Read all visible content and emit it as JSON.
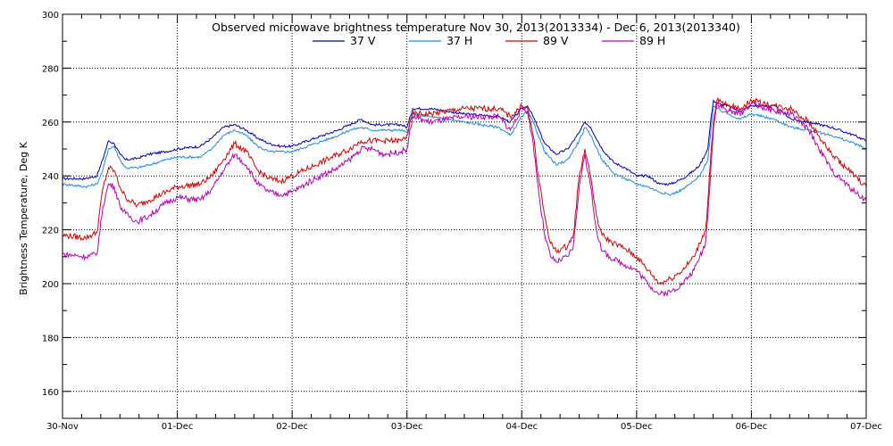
{
  "chart_data": {
    "type": "line",
    "title": "Observed microwave brightness temperature Nov 30, 2013(2013334) - Dec  6, 2013(2013340)",
    "xlabel": "",
    "ylabel": "Brightness Temperature, Deg K",
    "xlim": [
      0,
      7
    ],
    "ylim": [
      150,
      300
    ],
    "yticks": [
      160,
      180,
      200,
      220,
      240,
      260,
      280,
      300
    ],
    "xticks": [
      {
        "v": 0,
        "label": "30-Nov"
      },
      {
        "v": 1,
        "label": "01-Dec"
      },
      {
        "v": 2,
        "label": "02-Dec"
      },
      {
        "v": 3,
        "label": "03-Dec"
      },
      {
        "v": 4,
        "label": "04-Dec"
      },
      {
        "v": 5,
        "label": "05-Dec"
      },
      {
        "v": 6,
        "label": "06-Dec"
      },
      {
        "v": 7,
        "label": "07-Dec"
      }
    ],
    "grid": true,
    "legend_position": "top-center",
    "series": [
      {
        "name": "37 V",
        "color": "#0000bb",
        "x": [
          0,
          0.2,
          0.3,
          0.35,
          0.4,
          0.45,
          0.5,
          0.55,
          0.65,
          0.75,
          0.9,
          1.0,
          1.2,
          1.3,
          1.4,
          1.5,
          1.6,
          1.7,
          1.8,
          1.9,
          2.0,
          2.2,
          2.4,
          2.5,
          2.6,
          2.7,
          2.8,
          2.95,
          3.0,
          3.05,
          3.2,
          3.5,
          3.8,
          3.9,
          4.0,
          4.05,
          4.1,
          4.2,
          4.3,
          4.4,
          4.5,
          4.55,
          4.6,
          4.7,
          4.8,
          4.9,
          5.0,
          5.1,
          5.2,
          5.3,
          5.4,
          5.5,
          5.55,
          5.62,
          5.65,
          5.67,
          5.7,
          5.8,
          5.9,
          6.0,
          6.2,
          6.35,
          6.5,
          6.7,
          6.9,
          7.0
        ],
        "y": [
          239,
          239,
          240,
          246,
          253,
          252,
          248,
          246,
          246.5,
          248,
          249,
          250,
          251,
          254,
          258,
          259,
          257,
          254,
          252,
          251,
          251,
          254,
          257,
          259,
          261,
          259,
          259,
          259,
          258,
          265,
          265,
          263,
          262,
          260,
          265,
          266,
          262,
          252,
          248,
          250,
          256,
          260,
          258,
          250,
          245,
          243,
          240,
          240,
          237,
          237,
          239,
          242,
          244,
          250,
          262,
          268,
          267,
          266,
          264,
          266,
          266,
          261,
          260,
          258,
          255,
          253
        ]
      },
      {
        "name": "37 H",
        "color": "#1a8fd8",
        "x": [
          0,
          0.2,
          0.3,
          0.35,
          0.4,
          0.45,
          0.5,
          0.55,
          0.65,
          0.75,
          0.9,
          1.0,
          1.2,
          1.3,
          1.4,
          1.5,
          1.6,
          1.7,
          1.8,
          1.9,
          2.0,
          2.2,
          2.4,
          2.5,
          2.6,
          2.7,
          2.8,
          2.95,
          3.0,
          3.05,
          3.2,
          3.5,
          3.8,
          3.9,
          4.0,
          4.05,
          4.1,
          4.2,
          4.3,
          4.4,
          4.5,
          4.55,
          4.6,
          4.7,
          4.8,
          4.9,
          5.0,
          5.1,
          5.2,
          5.3,
          5.4,
          5.5,
          5.55,
          5.62,
          5.65,
          5.67,
          5.7,
          5.8,
          5.9,
          6.0,
          6.2,
          6.35,
          6.5,
          6.7,
          6.9,
          7.0
        ],
        "y": [
          237,
          236,
          237,
          242,
          250,
          251,
          246,
          243,
          243,
          244,
          246,
          247,
          247,
          250,
          255,
          257,
          255,
          251,
          249,
          249,
          249,
          252,
          255,
          257,
          258,
          257,
          257,
          257,
          256,
          263,
          262,
          260,
          258,
          255,
          262,
          264,
          260,
          249,
          244,
          246,
          253,
          258,
          255,
          246,
          241,
          239,
          237,
          236,
          234,
          233,
          235,
          238,
          240,
          246,
          258,
          266,
          265,
          263,
          261,
          263,
          261,
          258,
          257,
          255,
          252,
          250
        ]
      },
      {
        "name": "89 V",
        "color": "#dd0000",
        "x": [
          0,
          0.2,
          0.3,
          0.35,
          0.4,
          0.45,
          0.5,
          0.55,
          0.65,
          0.75,
          0.9,
          1.0,
          1.2,
          1.3,
          1.4,
          1.5,
          1.6,
          1.7,
          1.8,
          1.9,
          2.0,
          2.2,
          2.4,
          2.5,
          2.6,
          2.7,
          2.8,
          2.95,
          3.0,
          3.05,
          3.2,
          3.5,
          3.8,
          3.9,
          4.0,
          4.05,
          4.1,
          4.15,
          4.2,
          4.25,
          4.3,
          4.4,
          4.45,
          4.5,
          4.55,
          4.6,
          4.65,
          4.7,
          4.8,
          4.9,
          5.0,
          5.1,
          5.2,
          5.3,
          5.4,
          5.5,
          5.55,
          5.6,
          5.62,
          5.65,
          5.67,
          5.7,
          5.8,
          5.9,
          6.0,
          6.2,
          6.35,
          6.5,
          6.7,
          6.9,
          7.0
        ],
        "y": [
          218,
          217,
          219,
          235,
          243,
          242,
          236,
          232,
          229,
          231,
          234,
          236,
          237,
          240,
          246,
          252,
          249,
          242,
          239,
          238,
          240,
          244,
          248,
          250,
          253,
          253,
          253,
          253,
          255,
          263,
          263,
          265,
          265,
          262,
          266,
          265,
          255,
          238,
          225,
          215,
          212,
          214,
          218,
          240,
          250,
          240,
          225,
          218,
          215,
          213,
          210,
          205,
          200,
          202,
          205,
          210,
          215,
          220,
          230,
          250,
          260,
          268,
          266,
          265,
          268,
          266,
          265,
          260,
          248,
          240,
          236
        ]
      },
      {
        "name": "89 H",
        "color": "#bb00bb",
        "x": [
          0,
          0.2,
          0.3,
          0.35,
          0.4,
          0.45,
          0.5,
          0.55,
          0.65,
          0.75,
          0.9,
          1.0,
          1.2,
          1.3,
          1.4,
          1.5,
          1.6,
          1.7,
          1.8,
          1.9,
          2.0,
          2.2,
          2.4,
          2.5,
          2.6,
          2.7,
          2.8,
          2.95,
          3.0,
          3.05,
          3.2,
          3.5,
          3.8,
          3.9,
          4.0,
          4.05,
          4.1,
          4.15,
          4.2,
          4.25,
          4.3,
          4.4,
          4.45,
          4.5,
          4.55,
          4.6,
          4.65,
          4.7,
          4.8,
          4.9,
          5.0,
          5.1,
          5.2,
          5.3,
          5.4,
          5.5,
          5.55,
          5.6,
          5.62,
          5.65,
          5.67,
          5.7,
          5.8,
          5.9,
          6.0,
          6.2,
          6.35,
          6.5,
          6.7,
          6.9,
          7.0
        ],
        "y": [
          211,
          210,
          211,
          228,
          237,
          236,
          229,
          226,
          223,
          225,
          230,
          232,
          231,
          235,
          242,
          248,
          244,
          237,
          234,
          233,
          234,
          239,
          243,
          246,
          250,
          250,
          248,
          249,
          250,
          262,
          260,
          262,
          262,
          257,
          265,
          264,
          252,
          233,
          218,
          210,
          208,
          210,
          214,
          236,
          248,
          236,
          220,
          212,
          209,
          207,
          205,
          200,
          196,
          197,
          200,
          205,
          210,
          215,
          225,
          245,
          258,
          267,
          264,
          263,
          267,
          264,
          263,
          257,
          242,
          234,
          231
        ]
      }
    ]
  },
  "legend": {
    "items": [
      {
        "label": "37 V",
        "color": "#0000bb"
      },
      {
        "label": "37 H",
        "color": "#1a8fd8"
      },
      {
        "label": "89 V",
        "color": "#dd0000"
      },
      {
        "label": "89 H",
        "color": "#bb00bb"
      }
    ]
  }
}
